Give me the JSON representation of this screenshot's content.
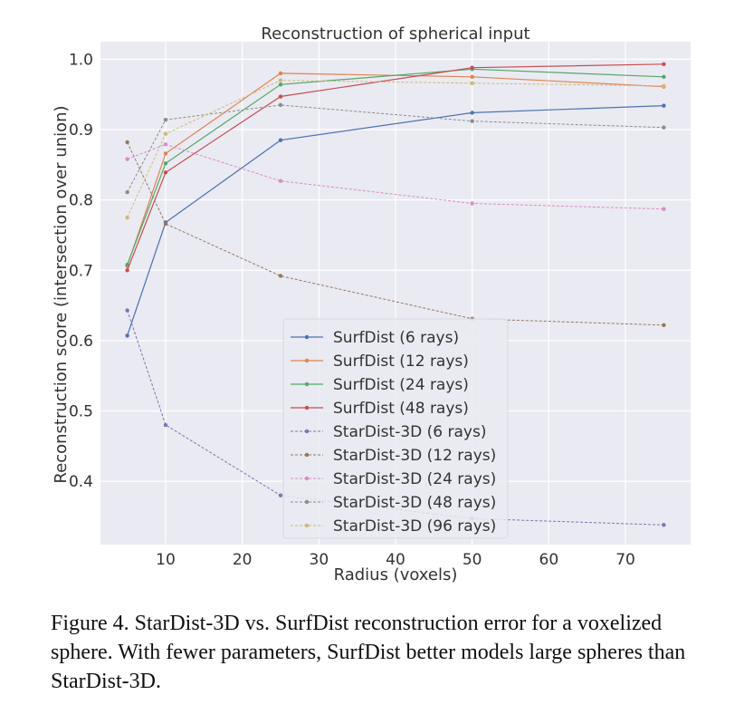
{
  "caption": "Figure 4. StarDist-3D vs. SurfDist reconstruction error for a voxelized sphere. With fewer parameters, SurfDist better models large spheres than StarDist-3D.",
  "chart_data": {
    "type": "line",
    "title": "Reconstruction of spherical input",
    "xlabel": "Radius (voxels)",
    "ylabel": "Reconstruction score (intersection over union)",
    "xlim": [
      1.5,
      78.5
    ],
    "ylim": [
      0.31,
      1.025
    ],
    "xticks": [
      10,
      20,
      30,
      40,
      50,
      60,
      70
    ],
    "yticks": [
      0.4,
      0.5,
      0.6,
      0.7,
      0.8,
      0.9,
      1.0
    ],
    "grid": true,
    "legend_position": "lower-center",
    "x": [
      5,
      10,
      25,
      50,
      75
    ],
    "series": [
      {
        "name": "SurfDist (6 rays)",
        "color": "#4c72b0",
        "style": "solid",
        "values": [
          0.607,
          0.768,
          0.885,
          0.924,
          0.934
        ]
      },
      {
        "name": "SurfDist (12 rays)",
        "color": "#dd8452",
        "style": "solid",
        "values": [
          0.706,
          0.866,
          0.98,
          0.975,
          0.961
        ]
      },
      {
        "name": "SurfDist (24 rays)",
        "color": "#55a868",
        "style": "solid",
        "values": [
          0.708,
          0.852,
          0.964,
          0.986,
          0.975
        ]
      },
      {
        "name": "SurfDist (48 rays)",
        "color": "#c44e52",
        "style": "solid",
        "values": [
          0.7,
          0.839,
          0.947,
          0.988,
          0.993
        ]
      },
      {
        "name": "StarDist-3D (6 rays)",
        "color": "#8172b3",
        "style": "dashed",
        "values": [
          0.643,
          0.48,
          0.38,
          0.347,
          0.338
        ]
      },
      {
        "name": "StarDist-3D (12 rays)",
        "color": "#937860",
        "style": "dashed",
        "values": [
          0.882,
          0.766,
          0.692,
          0.631,
          0.622
        ]
      },
      {
        "name": "StarDist-3D (24 rays)",
        "color": "#da8bc3",
        "style": "dashed",
        "values": [
          0.858,
          0.879,
          0.827,
          0.795,
          0.787
        ]
      },
      {
        "name": "StarDist-3D (48 rays)",
        "color": "#8c8c8c",
        "style": "dashed",
        "values": [
          0.811,
          0.914,
          0.935,
          0.912,
          0.903
        ]
      },
      {
        "name": "StarDist-3D (96 rays)",
        "color": "#ccb974",
        "style": "dashed",
        "values": [
          0.775,
          0.894,
          0.97,
          0.966,
          0.962
        ]
      }
    ]
  }
}
